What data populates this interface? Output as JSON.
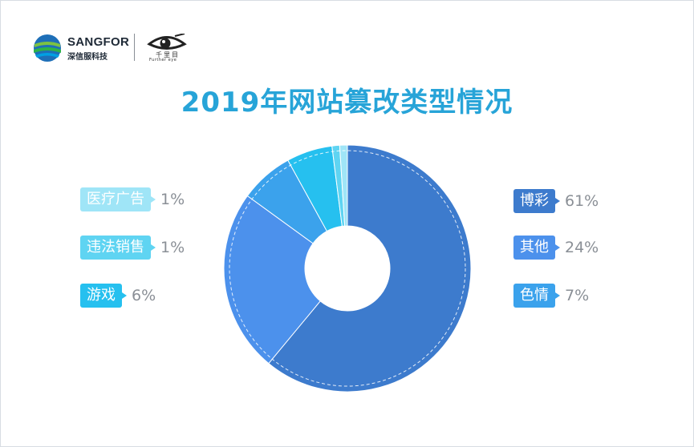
{
  "header": {
    "brand1_name": "SANGFOR",
    "brand1_sub": "深信服科技",
    "brand2_sub": "千里目",
    "brand2_en": "Further eye"
  },
  "chart_data": {
    "type": "pie",
    "style": "donut",
    "title": "2019年网站篡改类型情况",
    "slices": [
      {
        "label": "博彩",
        "value": 61,
        "value_label": "61%",
        "color": "#3d7bcd"
      },
      {
        "label": "其他",
        "value": 24,
        "value_label": "24%",
        "color": "#4c91ec"
      },
      {
        "label": "色情",
        "value": 7,
        "value_label": "7%",
        "color": "#3ba2ec"
      },
      {
        "label": "游戏",
        "value": 6,
        "value_label": "6%",
        "color": "#26c0ef"
      },
      {
        "label": "违法销售",
        "value": 1,
        "value_label": "1%",
        "color": "#5fd4f2"
      },
      {
        "label": "医疗广告",
        "value": 1,
        "value_label": "1%",
        "color": "#9fe5f7"
      }
    ]
  }
}
